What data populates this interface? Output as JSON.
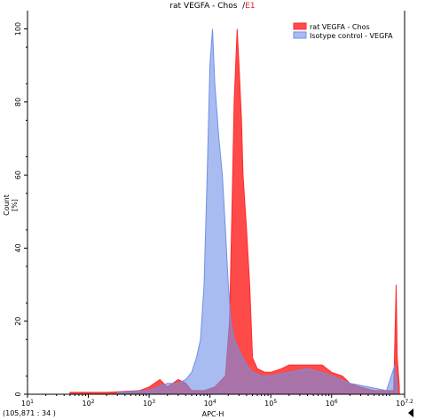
{
  "chart_data": {
    "type": "area",
    "title": "rat VEGFA - Chos",
    "title_gate": "E1",
    "xlabel": "APC-H",
    "ylabel": "Count [%]",
    "x_scale": "log",
    "xlim": [
      10,
      15848932
    ],
    "ylim": [
      0,
      105
    ],
    "yticks": [
      0,
      20,
      40,
      60,
      80,
      100
    ],
    "xticks": [
      10,
      100,
      1000,
      10000,
      100000,
      1000000,
      15848932
    ],
    "xtick_labels": [
      {
        "base": "10",
        "exp": "1"
      },
      {
        "base": "10",
        "exp": "2"
      },
      {
        "base": "10",
        "exp": "3"
      },
      {
        "base": "10",
        "exp": "4"
      },
      {
        "base": "10",
        "exp": "5"
      },
      {
        "base": "10",
        "exp": "6"
      },
      {
        "base": "10",
        "exp": "7.2"
      }
    ],
    "legend_position": "top-right",
    "series": [
      {
        "name": "rat VEGFA - Chos",
        "color": "#ff2a2a",
        "points": [
          [
            50,
            0.5
          ],
          [
            200,
            0.5
          ],
          [
            700,
            1
          ],
          [
            1000,
            2
          ],
          [
            1500,
            4
          ],
          [
            2000,
            2
          ],
          [
            3000,
            4
          ],
          [
            4000,
            3
          ],
          [
            5000,
            1
          ],
          [
            8000,
            1
          ],
          [
            12000,
            2
          ],
          [
            18000,
            5
          ],
          [
            21000,
            20
          ],
          [
            23000,
            50
          ],
          [
            25000,
            80
          ],
          [
            28000,
            100
          ],
          [
            30000,
            90
          ],
          [
            33000,
            75
          ],
          [
            35000,
            60
          ],
          [
            40000,
            45
          ],
          [
            45000,
            30
          ],
          [
            50000,
            10
          ],
          [
            60000,
            7
          ],
          [
            80000,
            6
          ],
          [
            100000,
            6
          ],
          [
            150000,
            7
          ],
          [
            200000,
            8
          ],
          [
            300000,
            8
          ],
          [
            500000,
            8
          ],
          [
            700000,
            8
          ],
          [
            1000000,
            6
          ],
          [
            1500000,
            5
          ],
          [
            2000000,
            3
          ],
          [
            3000000,
            2
          ],
          [
            5000000,
            1
          ],
          [
            8000000,
            1
          ],
          [
            10500000,
            1
          ],
          [
            11500000,
            30
          ],
          [
            12000000,
            10
          ],
          [
            13000000,
            2
          ]
        ]
      },
      {
        "name": "Isotype control - VEGFA",
        "color": "#6f8fe8",
        "points": [
          [
            300,
            0.5
          ],
          [
            1000,
            1
          ],
          [
            2000,
            3
          ],
          [
            3000,
            3
          ],
          [
            4000,
            4
          ],
          [
            5000,
            6
          ],
          [
            6000,
            10
          ],
          [
            7000,
            15
          ],
          [
            8000,
            30
          ],
          [
            9000,
            60
          ],
          [
            10000,
            90
          ],
          [
            11000,
            100
          ],
          [
            12000,
            85
          ],
          [
            14000,
            70
          ],
          [
            16000,
            60
          ],
          [
            18000,
            45
          ],
          [
            20000,
            30
          ],
          [
            22000,
            20
          ],
          [
            25000,
            15
          ],
          [
            30000,
            12
          ],
          [
            40000,
            8
          ],
          [
            50000,
            6
          ],
          [
            70000,
            5
          ],
          [
            100000,
            5
          ],
          [
            200000,
            6
          ],
          [
            400000,
            7
          ],
          [
            700000,
            6
          ],
          [
            1000000,
            5
          ],
          [
            2000000,
            3
          ],
          [
            4000000,
            2
          ],
          [
            8000000,
            1
          ],
          [
            11000000,
            8
          ],
          [
            12000000,
            2
          ]
        ]
      }
    ]
  },
  "footer": {
    "coords": "(105,871 : 34 )"
  }
}
